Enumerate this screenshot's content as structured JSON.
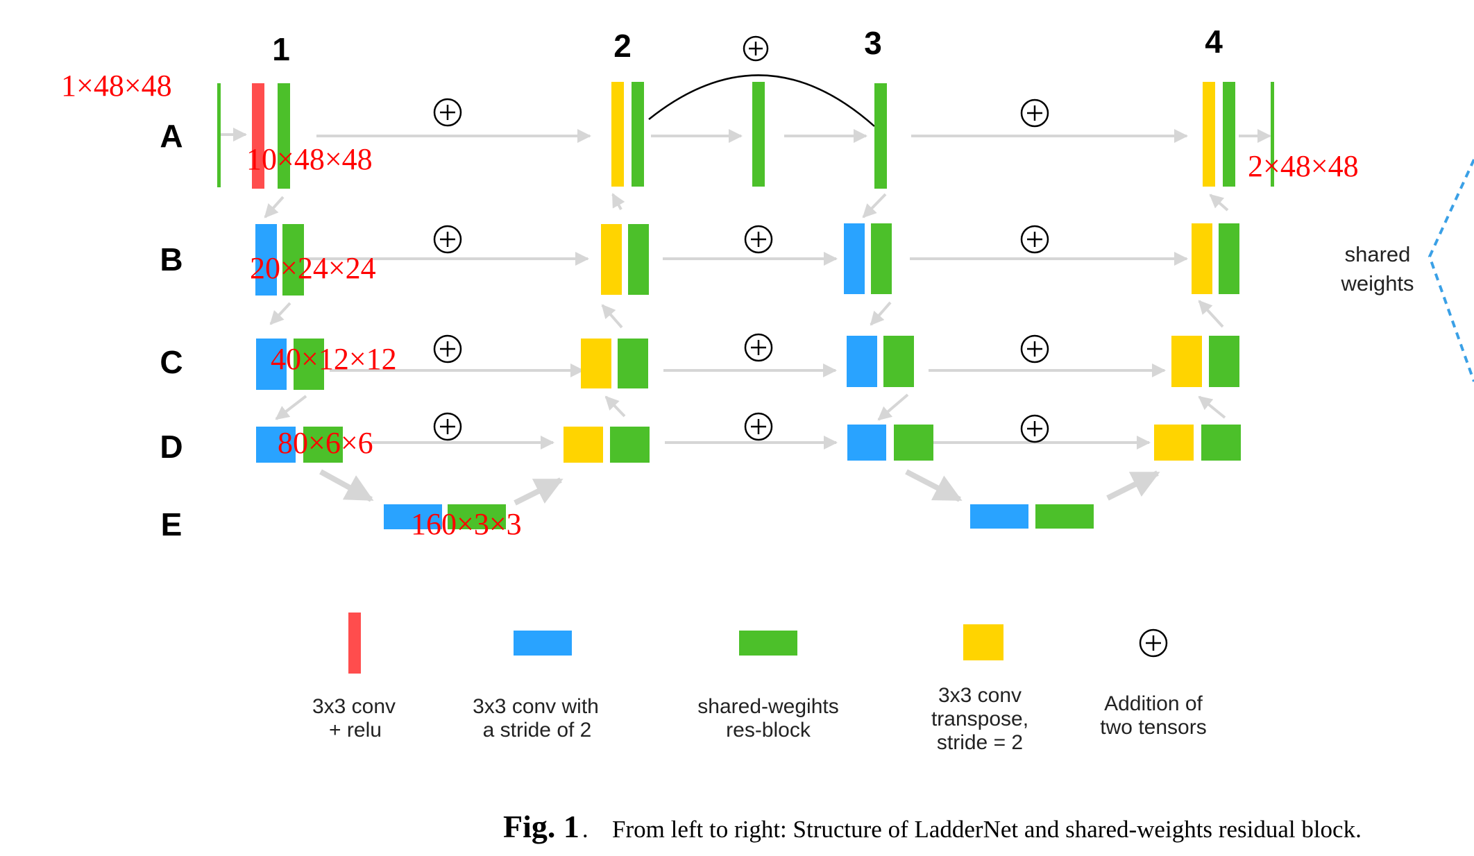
{
  "columns": [
    "1",
    "2",
    "3",
    "4"
  ],
  "rows": [
    "A",
    "B",
    "C",
    "D",
    "E"
  ],
  "dims": {
    "input": "1×48×48",
    "a": "10×48×48",
    "b": "20×24×24",
    "c": "40×12×12",
    "d": "80×6×6",
    "e": "160×3×3",
    "output": "2×48×48"
  },
  "side": {
    "shared_line1": "shared",
    "shared_line2": "weights"
  },
  "legend": [
    {
      "lines": [
        "3x3 conv",
        "+ relu"
      ]
    },
    {
      "lines": [
        "3x3 conv with",
        "a stride of 2"
      ]
    },
    {
      "lines": [
        "shared-wegihts",
        "res-block"
      ]
    },
    {
      "lines": [
        "3x3 conv",
        "transpose,",
        "stride = 2"
      ]
    },
    {
      "lines": [
        "Addition of",
        "two tensors"
      ]
    }
  ],
  "caption": {
    "prefix": "Fig. 1",
    "text": "From left to right: Structure of LadderNet and shared-weights residual block."
  },
  "colors": {
    "relu_conv": "#ff4d4d",
    "stride_conv": "#29a3ff",
    "res_block": "#4cc02a",
    "transpose_conv": "#ffd400",
    "arrow": "#d6d6d6",
    "annotation": "#ff0000",
    "dashed": "#3aa0e6"
  }
}
